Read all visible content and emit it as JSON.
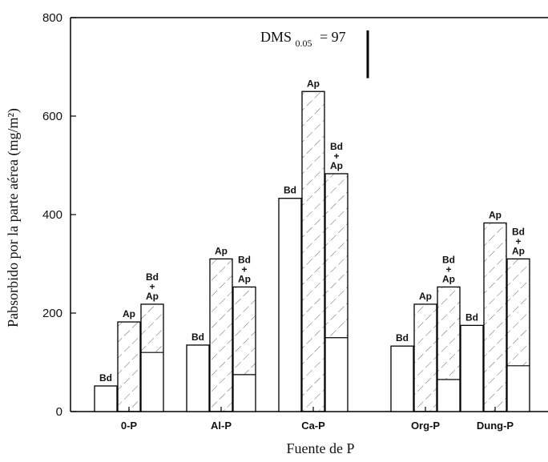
{
  "chart_data": {
    "type": "bar",
    "ylabel": "Pabsorbido por la parte aérea (mg/m²)",
    "xlabel": "Fuente de P",
    "ylim": [
      0,
      800
    ],
    "yticks": [
      "0",
      "200",
      "400",
      "600",
      "800"
    ],
    "categories": [
      "0-P",
      "Al-P",
      "Ca-P",
      "Org-P",
      "Dung-P"
    ],
    "series": [
      {
        "name": "Bd",
        "label": "Bd",
        "values": [
          52,
          135,
          433,
          133,
          175
        ],
        "pattern": "plain"
      },
      {
        "name": "Ap",
        "label": "Ap",
        "values": [
          182,
          310,
          650,
          218,
          383
        ],
        "pattern": "hatched"
      },
      {
        "name": "Bd + Ap",
        "label": "Bd + Ap",
        "values": [
          218,
          253,
          483,
          253,
          310
        ],
        "bd_component": [
          120,
          75,
          150,
          65,
          93
        ],
        "pattern": "stacked"
      }
    ],
    "annotation": {
      "label": "DMS",
      "subscript": "0.05",
      "value_text": "= 97",
      "value": 97
    }
  }
}
